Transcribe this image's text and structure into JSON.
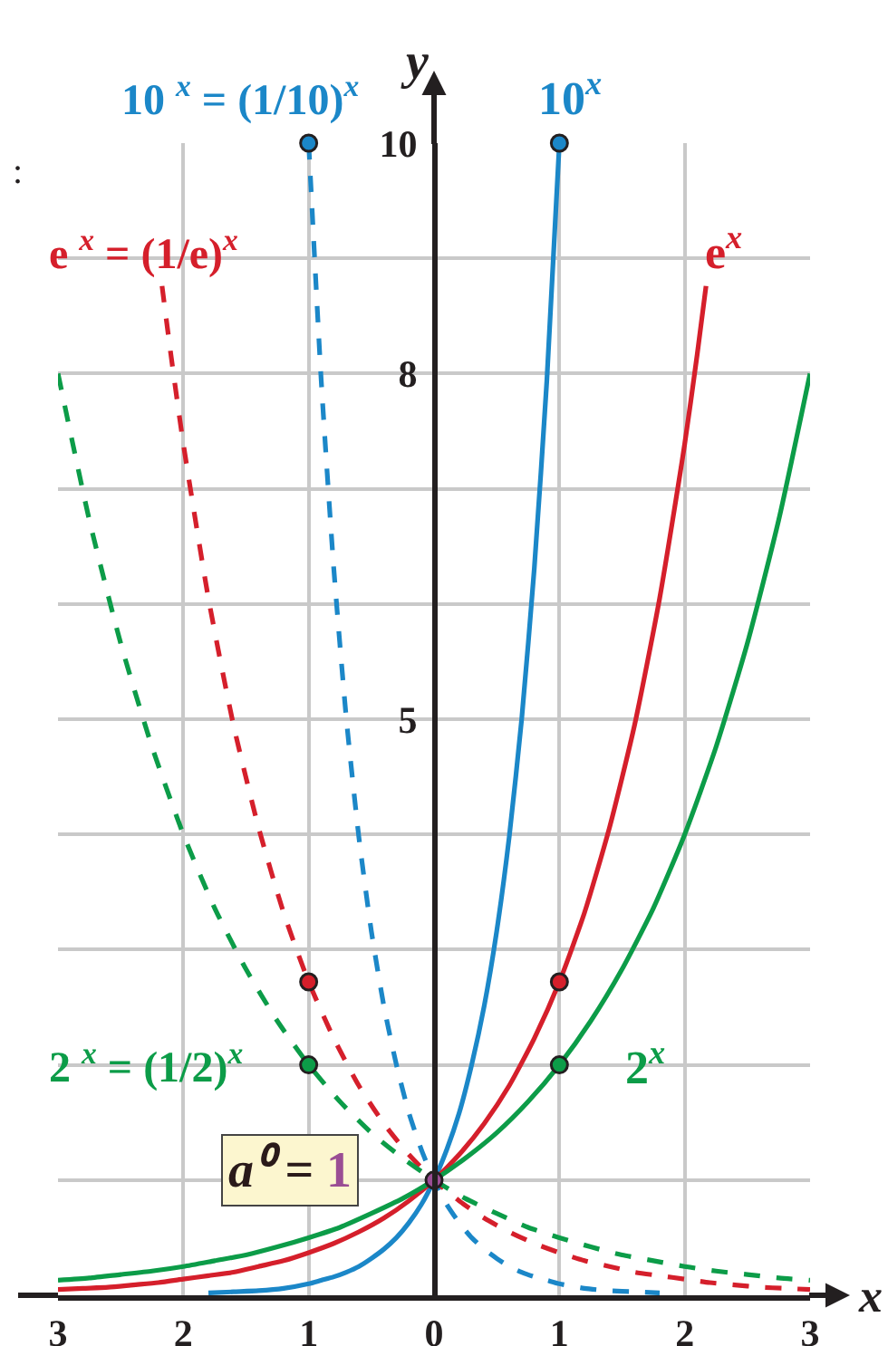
{
  "chart_data": {
    "type": "line",
    "xlabel": "x",
    "ylabel": "y",
    "xlim": [
      -3,
      3
    ],
    "ylim": [
      0,
      10
    ],
    "xticks": [
      {
        "value": -3,
        "label": "3"
      },
      {
        "value": -2,
        "label": "2"
      },
      {
        "value": -1,
        "label": "1"
      },
      0,
      1,
      2,
      3
    ],
    "yticks": [
      {
        "value": 1,
        "label": null
      },
      {
        "value": 2,
        "label": null
      },
      {
        "value": 3,
        "label": null
      },
      {
        "value": 4,
        "label": null
      },
      5,
      {
        "value": 6,
        "label": null
      },
      {
        "value": 7,
        "label": null
      },
      8,
      {
        "value": 9,
        "label": null
      },
      10
    ],
    "grid": true,
    "legend": false,
    "annotations": [
      ":",
      {
        "text": "a⁰ = 1",
        "x": 0,
        "y": 1
      }
    ],
    "series": [
      {
        "name": "10$^{x}$",
        "color": "#1b87c8",
        "line_style": "solid",
        "marker": "none",
        "x": [
          -1.8,
          -1.6,
          -1.4,
          -1.2,
          -1,
          -0.9,
          -0.8,
          -0.7,
          -0.6,
          -0.5,
          -0.4,
          -0.3,
          -0.2,
          -0.1,
          0,
          0.1,
          0.2,
          0.3,
          0.4,
          0.5,
          0.6,
          0.7,
          0.8,
          0.9,
          1
        ],
        "values": [
          0.02,
          0.03,
          0.04,
          0.06,
          0.1,
          0.13,
          0.16,
          0.2,
          0.25,
          0.32,
          0.4,
          0.5,
          0.63,
          0.79,
          1,
          1.26,
          1.58,
          2,
          2.51,
          3.16,
          3.98,
          5.01,
          6.31,
          7.94,
          10
        ]
      },
      {
        "name": "10 $^{x}$ = (1/10)$^{x}$",
        "color": "#1b87c8",
        "line_style": "dashed",
        "marker": "none",
        "x": [
          -1,
          -0.9,
          -0.8,
          -0.7,
          -0.6,
          -0.5,
          -0.4,
          -0.3,
          -0.2,
          -0.1,
          0,
          0.1,
          0.2,
          0.3,
          0.4,
          0.5,
          0.6,
          0.7,
          0.8,
          0.9,
          1,
          1.2,
          1.4,
          1.6,
          1.8
        ],
        "values": [
          10,
          7.94,
          6.31,
          5.01,
          3.98,
          3.16,
          2.51,
          2,
          1.58,
          1.26,
          1,
          0.79,
          0.63,
          0.5,
          0.4,
          0.32,
          0.25,
          0.2,
          0.16,
          0.13,
          0.1,
          0.06,
          0.04,
          0.03,
          0.02
        ]
      },
      {
        "name": "e$^{x}$",
        "color": "#d51f2b",
        "line_style": "solid",
        "marker": "none",
        "x": [
          -3,
          -2.8,
          -2.6,
          -2.4,
          -2.2,
          -2,
          -1.8,
          -1.6,
          -1.4,
          -1.2,
          -1,
          -0.8,
          -0.6,
          -0.4,
          -0.2,
          0,
          0.2,
          0.4,
          0.6,
          0.8,
          1,
          1.2,
          1.4,
          1.6,
          1.8,
          2,
          2.1,
          2.17
        ],
        "values": [
          0.05,
          0.06,
          0.07,
          0.09,
          0.11,
          0.14,
          0.17,
          0.2,
          0.25,
          0.3,
          0.37,
          0.45,
          0.55,
          0.67,
          0.82,
          1,
          1.22,
          1.49,
          1.82,
          2.23,
          2.72,
          3.32,
          4.06,
          4.95,
          6.05,
          7.39,
          8.17,
          8.76
        ]
      },
      {
        "name": "e $^{x}$ = (1/e)$^{x}$",
        "color": "#d51f2b",
        "line_style": "dashed",
        "marker": "none",
        "x": [
          -2.17,
          -2.1,
          -2,
          -1.8,
          -1.6,
          -1.4,
          -1.2,
          -1,
          -0.8,
          -0.6,
          -0.4,
          -0.2,
          0,
          0.2,
          0.4,
          0.6,
          0.8,
          1,
          1.2,
          1.4,
          1.6,
          1.8,
          2,
          2.2,
          2.4,
          2.6,
          2.8,
          3
        ],
        "values": [
          8.76,
          8.17,
          7.39,
          6.05,
          4.95,
          4.06,
          3.32,
          2.72,
          2.23,
          1.82,
          1.49,
          1.22,
          1,
          0.82,
          0.67,
          0.55,
          0.45,
          0.37,
          0.3,
          0.25,
          0.2,
          0.17,
          0.14,
          0.11,
          0.09,
          0.07,
          0.06,
          0.05
        ]
      },
      {
        "name": "2$^{x}$",
        "color": "#0c9c48",
        "line_style": "solid",
        "marker": "none",
        "x": [
          -3,
          -2.75,
          -2.5,
          -2.25,
          -2,
          -1.75,
          -1.5,
          -1.25,
          -1,
          -0.75,
          -0.5,
          -0.25,
          0,
          0.25,
          0.5,
          0.75,
          1,
          1.25,
          1.5,
          1.75,
          2,
          2.25,
          2.5,
          2.75,
          3
        ],
        "values": [
          0.13,
          0.15,
          0.18,
          0.21,
          0.25,
          0.3,
          0.35,
          0.42,
          0.5,
          0.59,
          0.71,
          0.84,
          1,
          1.19,
          1.41,
          1.68,
          2,
          2.38,
          2.83,
          3.36,
          4,
          4.76,
          5.66,
          6.73,
          8
        ]
      },
      {
        "name": "2 $^{x}$ = (1/2)$^{x}$",
        "color": "#0c9c48",
        "line_style": "dashed",
        "marker": "none",
        "x": [
          -3,
          -2.75,
          -2.5,
          -2.25,
          -2,
          -1.75,
          -1.5,
          -1.25,
          -1,
          -0.75,
          -0.5,
          -0.25,
          0,
          0.25,
          0.5,
          0.75,
          1,
          1.25,
          1.5,
          1.75,
          2,
          2.25,
          2.5,
          2.75,
          3
        ],
        "values": [
          8,
          6.73,
          5.66,
          4.76,
          4,
          3.36,
          2.83,
          2.38,
          2,
          1.68,
          1.41,
          1.19,
          1,
          0.84,
          0.71,
          0.59,
          0.5,
          0.42,
          0.35,
          0.3,
          0.25,
          0.21,
          0.18,
          0.15,
          0.13
        ]
      },
      {
        "color": "#1b87c8",
        "type": "scatter",
        "marker": "circle",
        "x": [
          -1,
          1
        ],
        "values": [
          10,
          10
        ]
      },
      {
        "color": "#d51f2b",
        "type": "scatter",
        "marker": "circle",
        "x": [
          -1,
          1
        ],
        "values": [
          2.72,
          2.72
        ]
      },
      {
        "color": "#0c9c48",
        "type": "scatter",
        "marker": "circle",
        "x": [
          -1,
          1
        ],
        "values": [
          2,
          2
        ]
      },
      {
        "color": "#9a4d94",
        "type": "scatter",
        "marker": "circle",
        "x": [
          0
        ],
        "values": [
          1
        ]
      }
    ]
  }
}
